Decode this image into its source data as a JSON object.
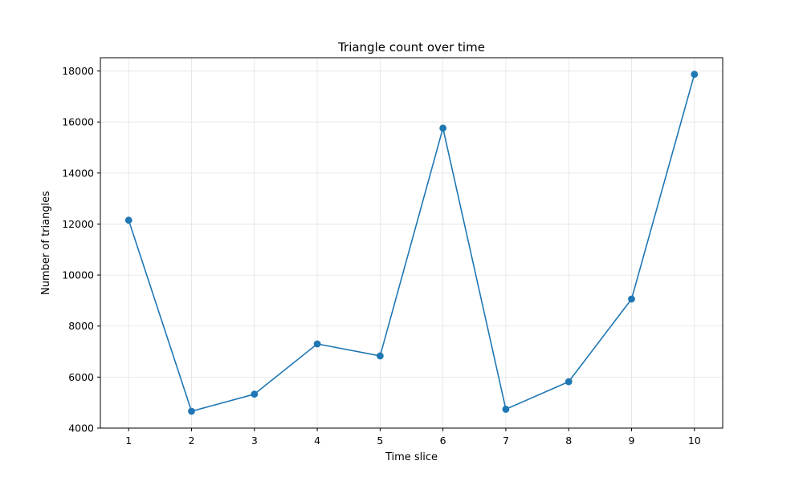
{
  "chart_data": {
    "type": "line",
    "title": "Triangle count over time",
    "xlabel": "Time slice",
    "ylabel": "Number of triangles",
    "x": [
      1,
      2,
      3,
      4,
      5,
      6,
      7,
      8,
      9,
      10
    ],
    "series": [
      {
        "values": [
          12150,
          4660,
          5330,
          7300,
          6830,
          15760,
          4740,
          5820,
          9060,
          17870
        ],
        "color": "#1f77b4",
        "marker": "circle"
      }
    ],
    "xticks": [
      1,
      2,
      3,
      4,
      5,
      6,
      7,
      8,
      9,
      10
    ],
    "yticks": [
      4000,
      6000,
      8000,
      10000,
      12000,
      14000,
      16000,
      18000
    ],
    "xlim": [
      0.55,
      10.45
    ],
    "ylim": [
      4000,
      18520
    ],
    "grid": true,
    "legend": "none"
  }
}
